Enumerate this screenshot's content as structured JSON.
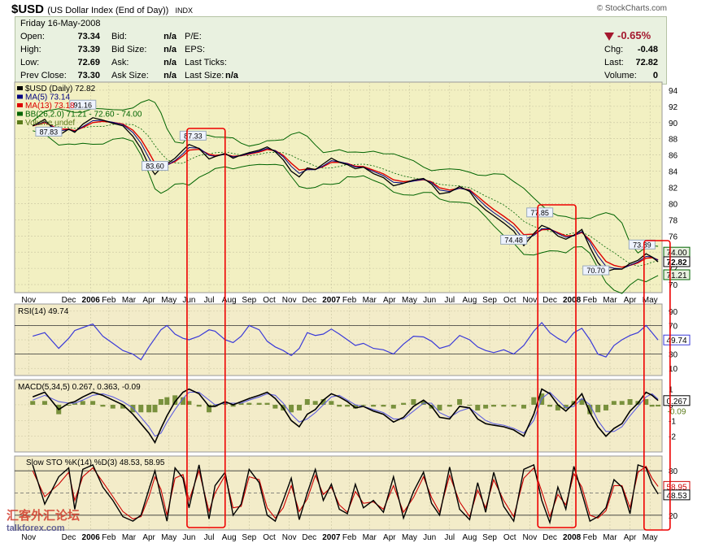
{
  "header": {
    "symbol": "$USD",
    "name": "(US Dollar Index (End of Day))",
    "exchange": "INDX",
    "credit": "© StockCharts.com"
  },
  "quote": {
    "date": "Friday  16-May-2008",
    "open_label": "Open:",
    "open": "73.34",
    "high_label": "High:",
    "high": "73.39",
    "low_label": "Low:",
    "low": "72.69",
    "prev_close_label": "Prev Close:",
    "prev_close": "73.30",
    "bid_label": "Bid:",
    "bid": "n/a",
    "bid_size_label": "Bid Size:",
    "bid_size": "n/a",
    "ask_label": "Ask:",
    "ask": "n/a",
    "ask_size_label": "Ask Size:",
    "ask_size": "n/a",
    "pe_label": "P/E:",
    "eps_label": "EPS:",
    "last_ticks_label": "Last Ticks:",
    "last_size_label": "Last Size:",
    "last_size": "n/a",
    "pct_change": "-0.65%",
    "chg_label": "Chg:",
    "chg": "-0.48",
    "last_label": "Last:",
    "last": "72.82",
    "volume_label": "Volume:",
    "volume": "0"
  },
  "watermark": {
    "line1": "汇客外汇论坛",
    "line2": "talkforex.com"
  },
  "colors": {
    "price_bg": "#f2f0c2",
    "indicator_bg": "#f3ecc9",
    "price_line": "#000000",
    "ma5": "#000080",
    "ma13": "#dd0000",
    "bollinger": "#006400",
    "rsi": "#3a3ad8",
    "macd": "#000000",
    "macd_signal": "#6060e0",
    "macd_hist": "#5a7a1a",
    "sto_k": "#000000",
    "sto_d": "#cc0000",
    "highlight": "#ee0000",
    "grid": "#c8c4a0"
  },
  "chart_data": [
    {
      "type": "line",
      "legend": [
        "$USD (Daily) 72.82",
        "MA(5) 73.14",
        "MA(13) 73.18",
        "BB(26,2.0) 71.21 - 72.60 - 74.00",
        "Volume undef"
      ],
      "x_tick_labels": [
        "Nov",
        "Dec",
        "2006",
        "Feb",
        "Mar",
        "Apr",
        "May",
        "Jun",
        "Jul",
        "Aug",
        "Sep",
        "Oct",
        "Nov",
        "Dec",
        "2007",
        "Feb",
        "Mar",
        "Apr",
        "May",
        "Jun",
        "Jul",
        "Aug",
        "Sep",
        "Oct",
        "Nov",
        "Dec",
        "2008",
        "Feb",
        "Mar",
        "Apr",
        "May"
      ],
      "x_tick_pos": [
        1,
        3,
        4.1,
        5,
        6,
        7,
        8,
        9,
        10,
        11,
        12,
        13,
        14,
        15,
        16.1,
        17,
        18,
        19,
        20,
        21,
        22,
        23,
        24,
        25,
        26,
        27,
        28.1,
        29,
        30,
        31,
        32
      ],
      "y_ticks": [
        "70",
        "72",
        "74",
        "76",
        "78",
        "80",
        "82",
        "84",
        "86",
        "88",
        "90",
        "92",
        "94"
      ],
      "ylim": [
        69,
        95
      ],
      "x_range": [
        0.3,
        32.6
      ],
      "x": [
        1.2,
        1.8,
        2.5,
        3.0,
        3.3,
        3.7,
        4.2,
        4.7,
        5.2,
        5.7,
        6.2,
        6.6,
        7.0,
        7.3,
        7.6,
        7.9,
        8.3,
        8.7,
        9.0,
        9.5,
        10.0,
        10.3,
        10.8,
        11.2,
        11.6,
        12.0,
        12.5,
        12.9,
        13.3,
        13.7,
        14.1,
        14.5,
        14.9,
        15.3,
        15.7,
        16.1,
        16.5,
        16.9,
        17.3,
        17.7,
        18.2,
        18.7,
        19.2,
        19.7,
        20.2,
        20.7,
        21.1,
        21.5,
        22.0,
        22.5,
        23.0,
        23.4,
        23.8,
        24.2,
        24.7,
        25.2,
        25.7,
        26.2,
        26.6,
        27.0,
        27.4,
        27.8,
        28.2,
        28.6,
        29.0,
        29.4,
        29.8,
        30.2,
        30.6,
        31.0,
        31.4,
        31.8,
        32.1,
        32.4
      ],
      "close": [
        89.6,
        90.4,
        88.4,
        89.2,
        88.8,
        89.8,
        90.6,
        90.3,
        89.9,
        89.6,
        88.3,
        86.8,
        84.7,
        83.6,
        84.4,
        84.9,
        85.6,
        86.6,
        87.3,
        86.8,
        85.5,
        85.8,
        86.2,
        85.6,
        86.0,
        86.3,
        86.6,
        87.0,
        86.4,
        85.4,
        84.0,
        83.3,
        84.4,
        84.2,
        84.9,
        85.6,
        85.1,
        84.8,
        84.3,
        84.5,
        83.7,
        83.2,
        82.2,
        82.5,
        82.9,
        83.1,
        82.4,
        81.2,
        81.4,
        82.1,
        81.5,
        80.1,
        79.2,
        78.5,
        77.6,
        76.6,
        74.8,
        76.3,
        77.3,
        76.9,
        76.0,
        75.6,
        76.1,
        76.8,
        74.6,
        72.7,
        71.6,
        71.9,
        71.9,
        72.6,
        73.0,
        73.8,
        73.4,
        72.8
      ],
      "price_labels": [
        {
          "text": "87.83",
          "x": 2.0,
          "y": 87.83
        },
        {
          "text": "91.16",
          "x": 3.7,
          "y": 91.16
        },
        {
          "text": "83.60",
          "x": 7.3,
          "y": 83.6
        },
        {
          "text": "87.33",
          "x": 9.2,
          "y": 87.33
        },
        {
          "text": "74.48",
          "x": 25.2,
          "y": 74.48
        },
        {
          "text": "77.85",
          "x": 26.5,
          "y": 77.85
        },
        {
          "text": "70.70",
          "x": 29.3,
          "y": 70.7
        },
        {
          "text": "73.89",
          "x": 31.6,
          "y": 73.89
        }
      ],
      "right_labels": [
        "74.00",
        "72.82",
        "71.21"
      ],
      "highlight_ranges": [
        [
          8.9,
          10.8
        ],
        [
          26.4,
          28.3
        ],
        [
          31.7,
          33.0
        ]
      ]
    },
    {
      "type": "line",
      "title": "RSI(14) 49.74",
      "y_ticks": [
        "10",
        "30",
        "50",
        "70",
        "90"
      ],
      "ylim": [
        0,
        100
      ],
      "levels": [
        30,
        70
      ],
      "current": "49.74",
      "values": [
        55,
        60,
        38,
        52,
        63,
        67,
        72,
        55,
        45,
        35,
        30,
        22,
        40,
        52,
        64,
        70,
        58,
        52,
        50,
        55,
        64,
        62,
        50,
        46,
        55,
        70,
        64,
        48,
        40,
        35,
        28,
        38,
        60,
        56,
        58,
        65,
        58,
        50,
        42,
        45,
        38,
        36,
        30,
        44,
        55,
        54,
        48,
        38,
        42,
        56,
        50,
        40,
        35,
        32,
        36,
        30,
        42,
        62,
        74,
        60,
        52,
        46,
        60,
        66,
        50,
        30,
        26,
        42,
        50,
        56,
        60,
        70,
        60,
        49.74
      ]
    },
    {
      "type": "line",
      "title": "MACD(5,34,5) 0.267, 0.363, -0.09",
      "y_ticks": [
        "-2",
        "-1",
        "0",
        "1"
      ],
      "ylim": [
        -3,
        1.6
      ],
      "current": [
        "0.267",
        "-0.09"
      ],
      "macd": [
        0.5,
        0.8,
        -0.3,
        0.1,
        0.2,
        0.5,
        0.8,
        0.6,
        0.3,
        0.0,
        -0.6,
        -1.2,
        -1.8,
        -2.4,
        -1.5,
        -0.7,
        0.2,
        0.8,
        1.0,
        0.7,
        -0.1,
        -0.1,
        0.2,
        0.0,
        0.2,
        0.4,
        0.6,
        0.8,
        0.4,
        -0.2,
        -1.0,
        -1.4,
        -0.6,
        -0.3,
        0.3,
        0.7,
        0.5,
        0.2,
        -0.2,
        -0.1,
        -0.4,
        -0.6,
        -1.1,
        -0.8,
        -0.1,
        0.3,
        -0.1,
        -0.8,
        -0.9,
        -0.1,
        -0.2,
        -0.9,
        -1.2,
        -1.3,
        -1.4,
        -1.6,
        -2.0,
        -0.6,
        1.0,
        0.7,
        0.0,
        -0.4,
        0.1,
        0.7,
        -0.5,
        -1.4,
        -2.0,
        -1.5,
        -1.2,
        -0.4,
        0.1,
        0.8,
        0.6,
        0.27
      ],
      "signal": [
        0.3,
        0.6,
        0.2,
        0.1,
        0.1,
        0.3,
        0.6,
        0.7,
        0.5,
        0.2,
        -0.2,
        -0.8,
        -1.4,
        -2.0,
        -1.8,
        -1.1,
        -0.3,
        0.4,
        0.8,
        0.8,
        0.3,
        0.0,
        0.1,
        0.1,
        0.1,
        0.3,
        0.5,
        0.7,
        0.6,
        0.1,
        -0.6,
        -1.1,
        -0.9,
        -0.5,
        0.0,
        0.5,
        0.6,
        0.3,
        0.0,
        -0.1,
        -0.3,
        -0.5,
        -0.9,
        -0.9,
        -0.4,
        0.1,
        0.1,
        -0.5,
        -0.8,
        -0.4,
        -0.2,
        -0.6,
        -1.0,
        -1.2,
        -1.3,
        -1.5,
        -1.8,
        -1.0,
        0.4,
        0.8,
        0.3,
        -0.2,
        -0.1,
        0.4,
        0.0,
        -1.0,
        -1.7,
        -1.7,
        -1.4,
        -0.7,
        -0.1,
        0.5,
        0.7,
        0.36
      ]
    },
    {
      "type": "line",
      "title": "Slow STO %K(14) %D(3) 48.53, 58.95",
      "y_ticks": [
        "20",
        "50",
        "80"
      ],
      "ylim": [
        0,
        100
      ],
      "levels": [
        20,
        50,
        80
      ],
      "current": [
        "58.95",
        "48.53"
      ],
      "k": [
        88,
        35,
        72,
        84,
        28,
        82,
        88,
        58,
        40,
        18,
        12,
        20,
        55,
        80,
        45,
        12,
        84,
        70,
        30,
        88,
        15,
        60,
        78,
        20,
        35,
        82,
        64,
        20,
        12,
        40,
        70,
        14,
        50,
        82,
        40,
        62,
        28,
        22,
        62,
        30,
        40,
        24,
        72,
        16,
        52,
        78,
        36,
        20,
        85,
        28,
        14,
        64,
        24,
        78,
        32,
        12,
        82,
        88,
        40,
        10,
        58,
        28,
        86,
        50,
        12,
        18,
        30,
        68,
        58,
        22,
        88,
        84,
        62,
        48.53
      ],
      "d": [
        80,
        45,
        62,
        78,
        40,
        72,
        84,
        65,
        45,
        25,
        15,
        18,
        45,
        72,
        55,
        20,
        70,
        75,
        40,
        80,
        25,
        50,
        74,
        30,
        32,
        72,
        68,
        30,
        16,
        30,
        60,
        25,
        42,
        74,
        48,
        58,
        34,
        24,
        52,
        36,
        38,
        28,
        60,
        24,
        44,
        72,
        44,
        24,
        74,
        38,
        18,
        54,
        30,
        68,
        40,
        18,
        70,
        84,
        52,
        18,
        48,
        34,
        76,
        58,
        20,
        16,
        26,
        60,
        60,
        30,
        78,
        86,
        70,
        58.95
      ]
    }
  ]
}
